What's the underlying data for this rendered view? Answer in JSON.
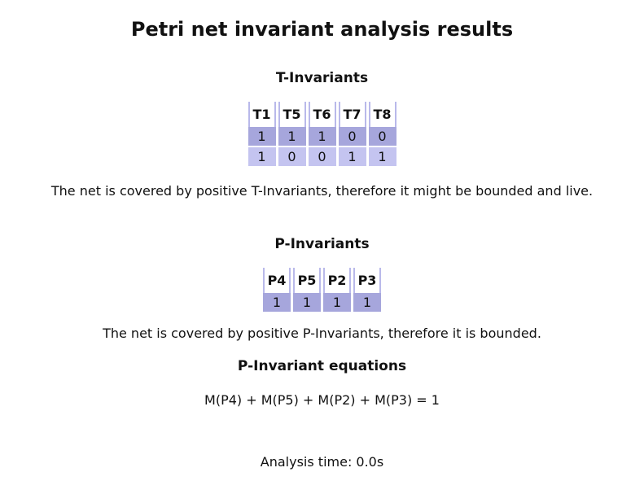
{
  "title": "Petri net invariant analysis results",
  "t_invariants": {
    "heading": "T-Invariants",
    "columns": [
      "T1",
      "T5",
      "T6",
      "T7",
      "T8"
    ],
    "rows": [
      [
        "1",
        "1",
        "1",
        "0",
        "0"
      ],
      [
        "1",
        "0",
        "0",
        "1",
        "1"
      ]
    ],
    "note": "The net is covered by positive T-Invariants, therefore it might be bounded and live."
  },
  "p_invariants": {
    "heading": "P-Invariants",
    "columns": [
      "P4",
      "P5",
      "P2",
      "P3"
    ],
    "rows": [
      [
        "1",
        "1",
        "1",
        "1"
      ]
    ],
    "note": "The net is covered by positive P-Invariants, therefore it is bounded."
  },
  "equations": {
    "heading": "P-Invariant equations",
    "items": [
      "M(P4) + M(P5) + M(P2) + M(P3) = 1"
    ]
  },
  "analysis_time": "Analysis time: 0.0s",
  "colors": {
    "header_border": "#b9b9ea",
    "row_dark": "#a6a6dc",
    "row_light": "#c4c4f0"
  }
}
